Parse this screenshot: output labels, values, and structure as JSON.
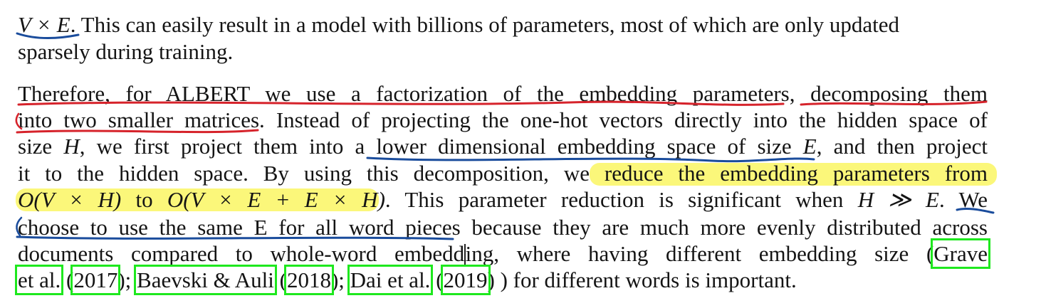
{
  "paragraph_1": {
    "math_ve": "V × E",
    "text_a": ". This can easily result in a model with billions of parameters, most of which are only updated",
    "text_b": "sparsely during training."
  },
  "paragraph_2": {
    "line_1a": "Therefore, for ALBERT we use a factorization of the embedding parameters, decomposing them",
    "line_2a": "into two smaller matrices. Instead of projecting the one-hot vectors directly into the hidden space of",
    "line_3a": "size ",
    "math_h": "H",
    "line_3b": ", we first project them into a lower dimensional embedding space of size ",
    "math_e": "E",
    "line_3c": ", and then project",
    "line_4a": "it to the hidden space.  By using this decomposition, we reduce the embedding parameters from",
    "line_5_math1": "O(V × H)",
    "line_5_to": " to ",
    "line_5_math2": "O(V × E + E × H)",
    "line_5b": ".  This parameter reduction is significant when ",
    "line_5_math3": "H ≫ E",
    "line_5c": ".  We",
    "line_6a": "choose to use the same E for all word pieces because they are much more evenly distributed across",
    "line_7a": "documents compared to whole-word embedd",
    "line_7b": "ing, where having different embedding size (",
    "cite_grave": "Grave",
    "cite_etal_1": "et al.",
    "cite_2017": "2017",
    "cite_baevski": "Baevski & Auli",
    "cite_2018": "2018",
    "cite_dai": "Dai et al.",
    "cite_2019": "2019",
    "line_8_open": " (",
    "line_8_close1": ");",
    "line_8_open2": " (",
    "line_8_close2": ");",
    "line_8_open3": " (",
    "line_8_end": ") ) for different words is important."
  },
  "colors": {
    "highlight": "#fbf77a",
    "red_underline": "#d6232b",
    "blue_underline": "#1a4c9c",
    "citation_box": "#1ee81e"
  }
}
